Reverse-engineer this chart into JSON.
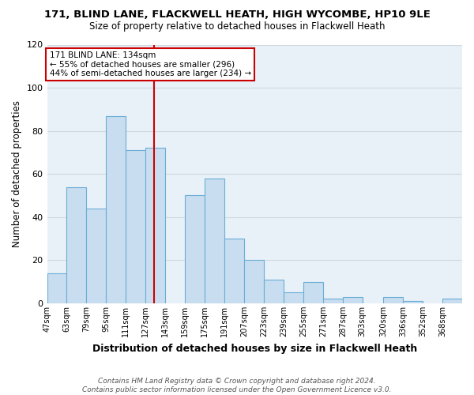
{
  "title1": "171, BLIND LANE, FLACKWELL HEATH, HIGH WYCOMBE, HP10 9LE",
  "title2": "Size of property relative to detached houses in Flackwell Heath",
  "xlabel": "Distribution of detached houses by size in Flackwell Heath",
  "ylabel": "Number of detached properties",
  "bar_labels": [
    "47sqm",
    "63sqm",
    "79sqm",
    "95sqm",
    "111sqm",
    "127sqm",
    "143sqm",
    "159sqm",
    "175sqm",
    "191sqm",
    "207sqm",
    "223sqm",
    "239sqm",
    "255sqm",
    "271sqm",
    "287sqm",
    "303sqm",
    "320sqm",
    "336sqm",
    "352sqm",
    "368sqm"
  ],
  "bar_values": [
    14,
    54,
    44,
    87,
    71,
    72,
    0,
    50,
    58,
    30,
    20,
    11,
    5,
    10,
    2,
    3,
    0,
    3,
    1,
    0,
    2
  ],
  "bar_color": "#c8ddef",
  "bar_edge_color": "#6aaed6",
  "bin_edges": [
    47,
    63,
    79,
    95,
    111,
    127,
    143,
    159,
    175,
    191,
    207,
    223,
    239,
    255,
    271,
    287,
    303,
    320,
    336,
    352,
    368,
    384
  ],
  "vline_x": 134,
  "vline_color": "#cc0000",
  "box_text_line1": "171 BLIND LANE: 134sqm",
  "box_text_line2": "← 55% of detached houses are smaller (296)",
  "box_text_line3": "44% of semi-detached houses are larger (234) →",
  "box_facecolor": "#ffffff",
  "box_edgecolor": "#cc0000",
  "ylim": [
    0,
    120
  ],
  "yticks": [
    0,
    20,
    40,
    60,
    80,
    100,
    120
  ],
  "grid_color": "#d0d8e0",
  "bg_color": "#ffffff",
  "plot_bg_color": "#e8f0f8",
  "footnote": "Contains HM Land Registry data © Crown copyright and database right 2024.\nContains public sector information licensed under the Open Government Licence v3.0."
}
